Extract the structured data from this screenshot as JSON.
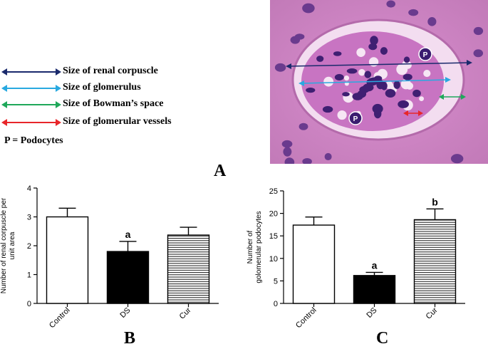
{
  "legend": {
    "items": [
      {
        "label": "Size of renal corpuscle",
        "color": "#1a2a6c"
      },
      {
        "label": "Size of glomerulus",
        "color": "#29a9e0"
      },
      {
        "label": "Size of Bowman’s space",
        "color": "#1fa85a"
      },
      {
        "label": "Size of glomerular vessels",
        "color": "#e8262a"
      }
    ],
    "note": "P = Podocytes"
  },
  "micrograph": {
    "labels": [
      "P",
      "P"
    ]
  },
  "panels": {
    "A": "A",
    "B": "B",
    "C": "C"
  },
  "chart_data": [
    {
      "type": "bar",
      "panel": "B",
      "categories": [
        "Control",
        "DS",
        "Cur"
      ],
      "values": [
        3.0,
        1.8,
        2.37
      ],
      "errors": [
        0.3,
        0.35,
        0.27
      ],
      "annotations": [
        "",
        "a",
        ""
      ],
      "fills": [
        "white",
        "black",
        "hlines"
      ],
      "ylabel": "Number of renal corpuscle per unit area",
      "ylim": [
        0,
        4
      ],
      "yticks": [
        0,
        1,
        2,
        3,
        4
      ]
    },
    {
      "type": "bar",
      "panel": "C",
      "categories": [
        "Control",
        "DS",
        "Cur"
      ],
      "values": [
        17.4,
        6.2,
        18.6
      ],
      "errors": [
        1.8,
        0.7,
        2.4
      ],
      "annotations": [
        "",
        "a",
        "b"
      ],
      "fills": [
        "white",
        "black",
        "hlines"
      ],
      "ylabel": "Number of golomerular podocytes",
      "ylim": [
        0,
        25
      ],
      "yticks": [
        0,
        5,
        10,
        15,
        20,
        25
      ]
    }
  ]
}
